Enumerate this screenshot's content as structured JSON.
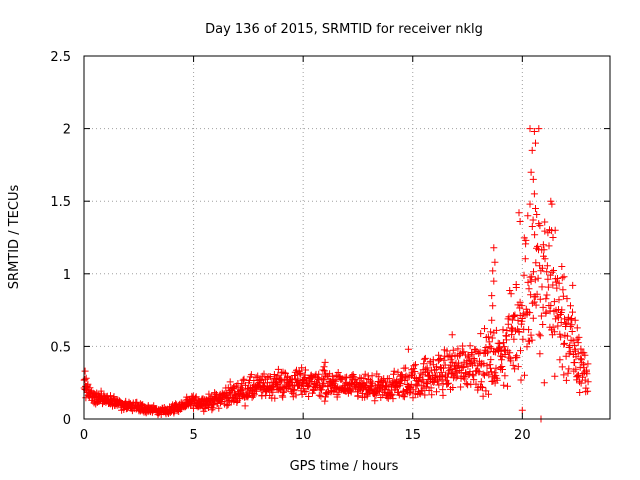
{
  "chart_data": {
    "type": "scatter",
    "title": "Day 136 of 2015, SRMTID for receiver nklg",
    "xlabel": "GPS time / hours",
    "ylabel": "SRMTID / TECUs",
    "xlim": [
      0,
      24
    ],
    "ylim": [
      0,
      2.5
    ],
    "xticks": [
      0,
      5,
      10,
      15,
      20
    ],
    "yticks": [
      0,
      0.5,
      1,
      1.5,
      2,
      2.5
    ],
    "xtick_labels": [
      "0",
      "5",
      "10",
      "15",
      "20"
    ],
    "ytick_labels": [
      "0",
      "0.5",
      "1",
      "1.5",
      "2",
      "2.5"
    ],
    "grid": true,
    "marker": "+",
    "color": "#ff0000",
    "series": [
      {
        "name": "SRMTID",
        "trend_hours": [
          0,
          0.5,
          1,
          1.5,
          2,
          2.5,
          3,
          3.5,
          4,
          4.5,
          5,
          5.5,
          6,
          6.5,
          7,
          7.5,
          8,
          8.5,
          9,
          9.5,
          10,
          10.5,
          11,
          11.5,
          12,
          12.5,
          13,
          13.5,
          14,
          14.5,
          15,
          15.5,
          16,
          16.5,
          17,
          17.5,
          18,
          18.5,
          19,
          19.5,
          20,
          20.5,
          21,
          21.5,
          22,
          22.5,
          23
        ],
        "trend_values": [
          0.22,
          0.15,
          0.13,
          0.11,
          0.09,
          0.08,
          0.07,
          0.05,
          0.07,
          0.09,
          0.12,
          0.11,
          0.13,
          0.16,
          0.18,
          0.2,
          0.22,
          0.23,
          0.25,
          0.24,
          0.26,
          0.25,
          0.24,
          0.23,
          0.22,
          0.21,
          0.21,
          0.2,
          0.22,
          0.24,
          0.26,
          0.28,
          0.3,
          0.33,
          0.36,
          0.38,
          0.4,
          0.38,
          0.42,
          0.55,
          0.75,
          1.0,
          0.95,
          0.8,
          0.6,
          0.4,
          0.3
        ],
        "spread": [
          0.07,
          0.05,
          0.04,
          0.04,
          0.03,
          0.03,
          0.03,
          0.02,
          0.03,
          0.03,
          0.04,
          0.04,
          0.05,
          0.06,
          0.07,
          0.08,
          0.08,
          0.08,
          0.09,
          0.09,
          0.09,
          0.09,
          0.09,
          0.08,
          0.08,
          0.08,
          0.08,
          0.08,
          0.09,
          0.1,
          0.11,
          0.12,
          0.13,
          0.14,
          0.15,
          0.15,
          0.18,
          0.18,
          0.2,
          0.28,
          0.45,
          0.55,
          0.5,
          0.45,
          0.35,
          0.22,
          0.15
        ],
        "point_count": 1400,
        "outliers": [
          {
            "x": 20.35,
            "y": 2.0
          },
          {
            "x": 20.55,
            "y": 1.98
          },
          {
            "x": 20.75,
            "y": 2.0
          },
          {
            "x": 20.45,
            "y": 1.85
          },
          {
            "x": 20.6,
            "y": 1.9
          },
          {
            "x": 20.4,
            "y": 1.7
          },
          {
            "x": 20.5,
            "y": 1.65
          },
          {
            "x": 20.55,
            "y": 1.55
          },
          {
            "x": 20.35,
            "y": 1.48
          },
          {
            "x": 20.6,
            "y": 1.45
          },
          {
            "x": 21.3,
            "y": 1.5
          },
          {
            "x": 21.35,
            "y": 1.48
          },
          {
            "x": 20.25,
            "y": 1.4
          },
          {
            "x": 19.85,
            "y": 1.42
          },
          {
            "x": 19.9,
            "y": 1.36
          },
          {
            "x": 21.5,
            "y": 1.3
          },
          {
            "x": 21.4,
            "y": 1.25
          },
          {
            "x": 18.7,
            "y": 1.18
          },
          {
            "x": 18.75,
            "y": 1.08
          },
          {
            "x": 18.65,
            "y": 1.02
          },
          {
            "x": 18.7,
            "y": 0.95
          },
          {
            "x": 18.6,
            "y": 0.85
          },
          {
            "x": 18.65,
            "y": 0.78
          },
          {
            "x": 18.6,
            "y": 0.68
          },
          {
            "x": 18.55,
            "y": 0.6
          },
          {
            "x": 22.3,
            "y": 0.92
          },
          {
            "x": 22.2,
            "y": 0.78
          },
          {
            "x": 22.1,
            "y": 0.7
          },
          {
            "x": 22.5,
            "y": 0.55
          },
          {
            "x": 22.4,
            "y": 0.48
          },
          {
            "x": 20.85,
            "y": 0.0
          },
          {
            "x": 20.0,
            "y": 0.06
          },
          {
            "x": 21.8,
            "y": 1.05
          },
          {
            "x": 21.9,
            "y": 0.98
          },
          {
            "x": 20.8,
            "y": 0.45
          },
          {
            "x": 21.0,
            "y": 0.25
          },
          {
            "x": 0.05,
            "y": 0.33
          },
          {
            "x": 0.1,
            "y": 0.28
          },
          {
            "x": 16.8,
            "y": 0.58
          },
          {
            "x": 14.8,
            "y": 0.48
          },
          {
            "x": 11.0,
            "y": 0.39
          },
          {
            "x": 10.95,
            "y": 0.36
          }
        ]
      }
    ]
  }
}
